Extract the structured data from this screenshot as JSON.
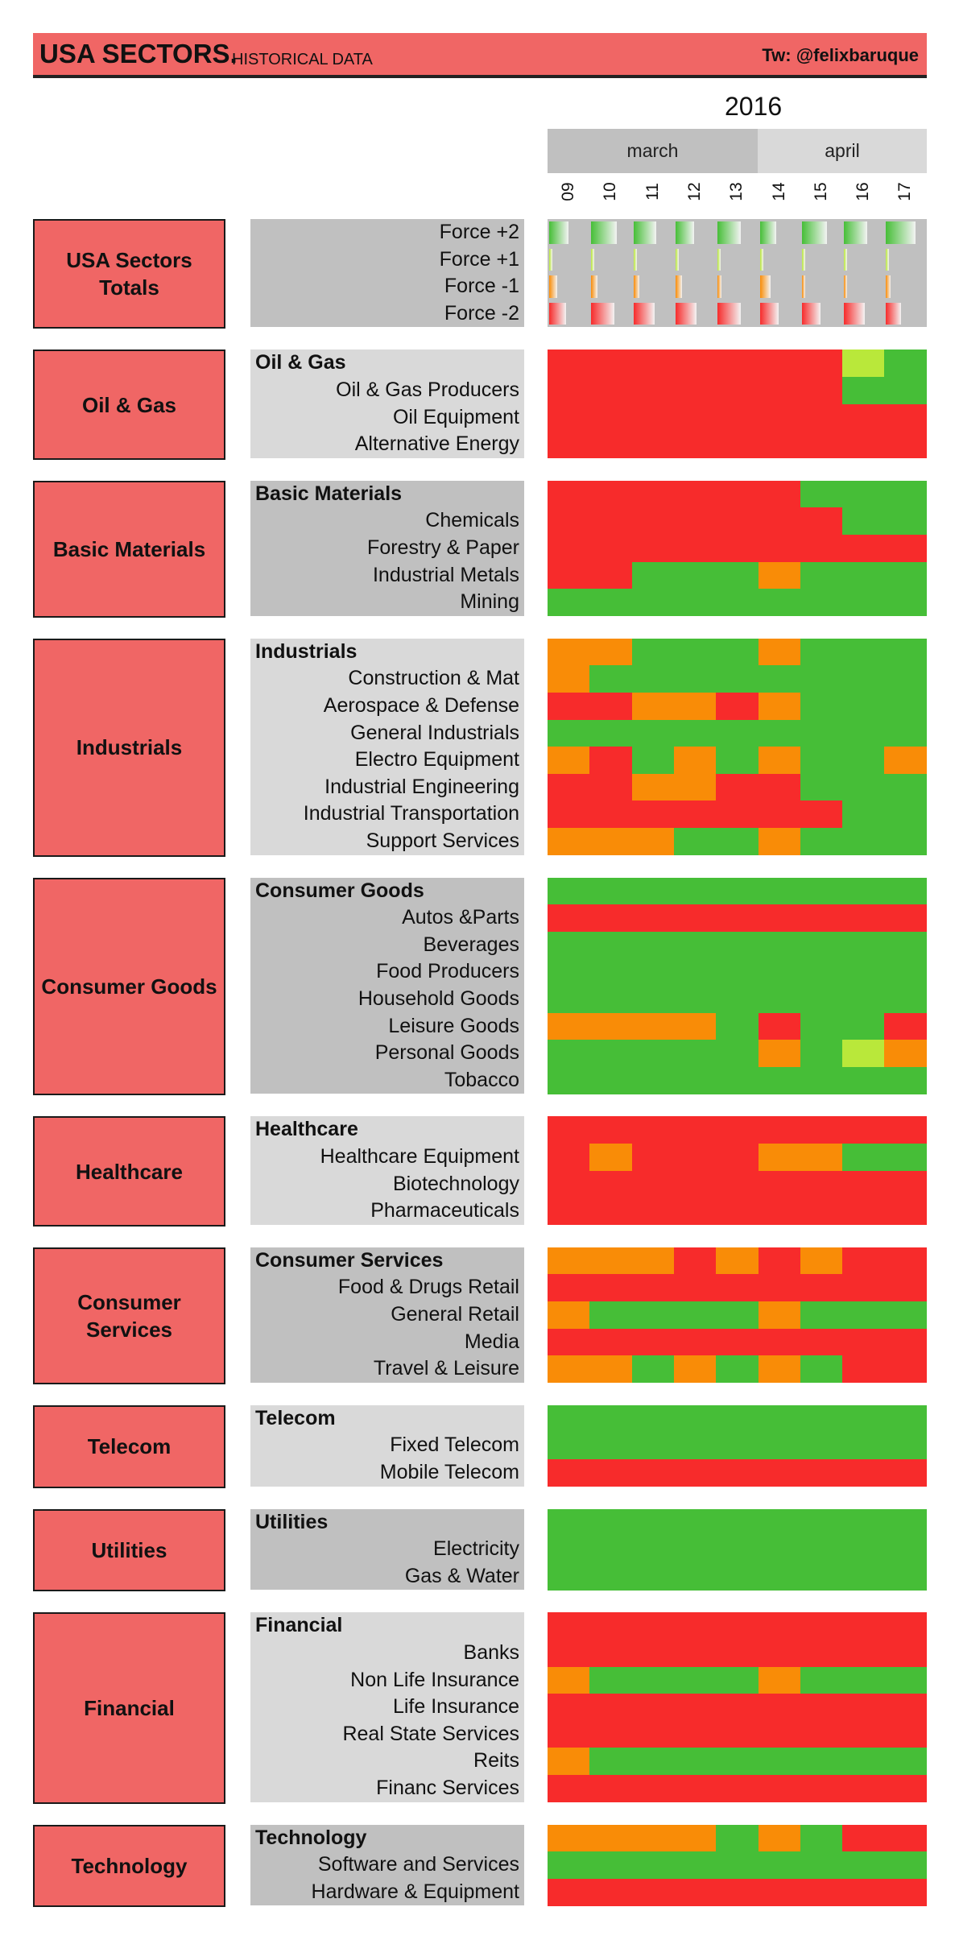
{
  "header": {
    "title": "USA SECTORS.",
    "subtitle": "HISTORICAL DATA",
    "twitter": "Tw: @felixbaruque"
  },
  "colors": {
    "header_bg": "#f06665",
    "force_plus2": "#46be37",
    "force_plus1": "#b9e83a",
    "force_minus1": "#f98c07",
    "force_minus2": "#f72b2b",
    "panel_dark": "#c0c0c0",
    "panel_light": "#d9d9d9"
  },
  "chart_data": {
    "type": "heatmap",
    "year": "2016",
    "months": [
      {
        "name": "march",
        "days": 5
      },
      {
        "name": "april",
        "days": 4
      }
    ],
    "days": [
      "09",
      "10",
      "11",
      "12",
      "13",
      "14",
      "15",
      "16",
      "17"
    ],
    "legend": {
      "group": "USA Sectors Totals",
      "rows": [
        "Force +2",
        "Force +1",
        "Force -1",
        "Force -2"
      ],
      "values": {
        "Force +2": [
          0.45,
          0.6,
          0.55,
          0.45,
          0.55,
          0.4,
          0.6,
          0.55,
          0.7
        ],
        "Force +1": [
          0.05,
          0.05,
          0.05,
          0.05,
          0.05,
          0.05,
          0.05,
          0.05,
          0.05
        ],
        "Force -1": [
          0.2,
          0.15,
          0.15,
          0.15,
          0.1,
          0.25,
          0.05,
          0.05,
          0.1
        ],
        "Force -2": [
          0.4,
          0.55,
          0.5,
          0.5,
          0.55,
          0.45,
          0.45,
          0.5,
          0.35
        ]
      }
    },
    "value_key": {
      "2": "Force +2",
      "1": "Force +1",
      "-1": "Force -1",
      "-2": "Force -2"
    },
    "groups": [
      {
        "name": "Oil & Gas",
        "rows": [
          {
            "label": "Oil & Gas",
            "values": [
              -2,
              -2,
              -2,
              -2,
              -2,
              -2,
              -2,
              1,
              2
            ]
          },
          {
            "label": "Oil & Gas Producers",
            "values": [
              -2,
              -2,
              -2,
              -2,
              -2,
              -2,
              -2,
              2,
              2
            ]
          },
          {
            "label": "Oil Equipment",
            "values": [
              -2,
              -2,
              -2,
              -2,
              -2,
              -2,
              -2,
              -2,
              -2
            ]
          },
          {
            "label": "Alternative Energy",
            "values": [
              -2,
              -2,
              -2,
              -2,
              -2,
              -2,
              -2,
              -2,
              -2
            ]
          }
        ]
      },
      {
        "name": "Basic Materials",
        "rows": [
          {
            "label": "Basic Materials",
            "values": [
              -2,
              -2,
              -2,
              -2,
              -2,
              -2,
              2,
              2,
              2
            ]
          },
          {
            "label": "Chemicals",
            "values": [
              -2,
              -2,
              -2,
              -2,
              -2,
              -2,
              -2,
              2,
              2
            ]
          },
          {
            "label": "Forestry & Paper",
            "values": [
              -2,
              -2,
              -2,
              -2,
              -2,
              -2,
              -2,
              -2,
              -2
            ]
          },
          {
            "label": "Industrial Metals",
            "values": [
              -2,
              -2,
              2,
              2,
              2,
              -1,
              2,
              2,
              2
            ]
          },
          {
            "label": "Mining",
            "values": [
              2,
              2,
              2,
              2,
              2,
              2,
              2,
              2,
              2
            ]
          }
        ]
      },
      {
        "name": "Industrials",
        "rows": [
          {
            "label": "Industrials",
            "values": [
              -1,
              -1,
              2,
              2,
              2,
              -1,
              2,
              2,
              2
            ]
          },
          {
            "label": "Construction & Mat",
            "values": [
              -1,
              2,
              2,
              2,
              2,
              2,
              2,
              2,
              2
            ]
          },
          {
            "label": "Aerospace & Defense",
            "values": [
              -2,
              -2,
              -1,
              -1,
              -2,
              -1,
              2,
              2,
              2
            ]
          },
          {
            "label": "General Industrials",
            "values": [
              2,
              2,
              2,
              2,
              2,
              2,
              2,
              2,
              2
            ]
          },
          {
            "label": "Electro Equipment",
            "values": [
              -1,
              -2,
              2,
              -1,
              2,
              -1,
              2,
              2,
              -1
            ]
          },
          {
            "label": "Industrial Engineering",
            "values": [
              -2,
              -2,
              -1,
              -1,
              -2,
              -2,
              2,
              2,
              2
            ]
          },
          {
            "label": "Industrial Transportation",
            "values": [
              -2,
              -2,
              -2,
              -2,
              -2,
              -2,
              -2,
              2,
              2
            ]
          },
          {
            "label": "Support Services",
            "values": [
              -1,
              -1,
              -1,
              2,
              2,
              -1,
              2,
              2,
              2
            ]
          }
        ]
      },
      {
        "name": "Consumer Goods",
        "rows": [
          {
            "label": "Consumer Goods",
            "values": [
              2,
              2,
              2,
              2,
              2,
              2,
              2,
              2,
              2
            ]
          },
          {
            "label": "Autos &Parts",
            "values": [
              -2,
              -2,
              -2,
              -2,
              -2,
              -2,
              -2,
              -2,
              -2
            ]
          },
          {
            "label": "Beverages",
            "values": [
              2,
              2,
              2,
              2,
              2,
              2,
              2,
              2,
              2
            ]
          },
          {
            "label": "Food Producers",
            "values": [
              2,
              2,
              2,
              2,
              2,
              2,
              2,
              2,
              2
            ]
          },
          {
            "label": "Household Goods",
            "values": [
              2,
              2,
              2,
              2,
              2,
              2,
              2,
              2,
              2
            ]
          },
          {
            "label": "Leisure Goods",
            "values": [
              -1,
              -1,
              -1,
              -1,
              2,
              -2,
              2,
              2,
              -2
            ]
          },
          {
            "label": "Personal Goods",
            "values": [
              2,
              2,
              2,
              2,
              2,
              -1,
              2,
              1,
              -1
            ]
          },
          {
            "label": "Tobacco",
            "values": [
              2,
              2,
              2,
              2,
              2,
              2,
              2,
              2,
              2
            ]
          }
        ]
      },
      {
        "name": "Healthcare",
        "rows": [
          {
            "label": "Healthcare",
            "values": [
              -2,
              -2,
              -2,
              -2,
              -2,
              -2,
              -2,
              -2,
              -2
            ]
          },
          {
            "label": "Healthcare Equipment",
            "values": [
              -2,
              -1,
              -2,
              -2,
              -2,
              -1,
              -1,
              2,
              2
            ]
          },
          {
            "label": "Biotechnology",
            "values": [
              -2,
              -2,
              -2,
              -2,
              -2,
              -2,
              -2,
              -2,
              -2
            ]
          },
          {
            "label": "Pharmaceuticals",
            "values": [
              -2,
              -2,
              -2,
              -2,
              -2,
              -2,
              -2,
              -2,
              -2
            ]
          }
        ]
      },
      {
        "name": "Consumer Services",
        "rows": [
          {
            "label": "Consumer Services",
            "values": [
              -1,
              -1,
              -1,
              -2,
              -1,
              -2,
              -1,
              -2,
              -2
            ]
          },
          {
            "label": "Food & Drugs Retail",
            "values": [
              -2,
              -2,
              -2,
              -2,
              -2,
              -2,
              -2,
              -2,
              -2
            ]
          },
          {
            "label": "General Retail",
            "values": [
              -1,
              2,
              2,
              2,
              2,
              -1,
              2,
              2,
              2
            ]
          },
          {
            "label": "Media",
            "values": [
              -2,
              -2,
              -2,
              -2,
              -2,
              -2,
              -2,
              -2,
              -2
            ]
          },
          {
            "label": "Travel & Leisure",
            "values": [
              -1,
              -1,
              2,
              -1,
              2,
              -1,
              2,
              -2,
              -2
            ]
          }
        ]
      },
      {
        "name": "Telecom",
        "rows": [
          {
            "label": "Telecom",
            "values": [
              2,
              2,
              2,
              2,
              2,
              2,
              2,
              2,
              2
            ]
          },
          {
            "label": "Fixed Telecom",
            "values": [
              2,
              2,
              2,
              2,
              2,
              2,
              2,
              2,
              2
            ]
          },
          {
            "label": "Mobile Telecom",
            "values": [
              -2,
              -2,
              -2,
              -2,
              -2,
              -2,
              -2,
              -2,
              -2
            ]
          }
        ]
      },
      {
        "name": "Utilities",
        "rows": [
          {
            "label": "Utilities",
            "values": [
              2,
              2,
              2,
              2,
              2,
              2,
              2,
              2,
              2
            ]
          },
          {
            "label": "Electricity",
            "values": [
              2,
              2,
              2,
              2,
              2,
              2,
              2,
              2,
              2
            ]
          },
          {
            "label": "Gas & Water",
            "values": [
              2,
              2,
              2,
              2,
              2,
              2,
              2,
              2,
              2
            ]
          }
        ]
      },
      {
        "name": "Financial",
        "rows": [
          {
            "label": "Financial",
            "values": [
              -2,
              -2,
              -2,
              -2,
              -2,
              -2,
              -2,
              -2,
              -2
            ]
          },
          {
            "label": "Banks",
            "values": [
              -2,
              -2,
              -2,
              -2,
              -2,
              -2,
              -2,
              -2,
              -2
            ]
          },
          {
            "label": "Non Life Insurance",
            "values": [
              -1,
              2,
              2,
              2,
              2,
              -1,
              2,
              2,
              2
            ]
          },
          {
            "label": "Life Insurance",
            "values": [
              -2,
              -2,
              -2,
              -2,
              -2,
              -2,
              -2,
              -2,
              -2
            ]
          },
          {
            "label": "Real State Services",
            "values": [
              -2,
              -2,
              -2,
              -2,
              -2,
              -2,
              -2,
              -2,
              -2
            ]
          },
          {
            "label": "Reits",
            "values": [
              -1,
              2,
              2,
              2,
              2,
              2,
              2,
              2,
              2
            ]
          },
          {
            "label": "Financ Services",
            "values": [
              -2,
              -2,
              -2,
              -2,
              -2,
              -2,
              -2,
              -2,
              -2
            ]
          }
        ]
      },
      {
        "name": "Technology",
        "rows": [
          {
            "label": "Technology",
            "values": [
              -1,
              -1,
              -1,
              -1,
              2,
              -1,
              2,
              -2,
              -2
            ]
          },
          {
            "label": "Software and Services",
            "values": [
              2,
              2,
              2,
              2,
              2,
              2,
              2,
              2,
              2
            ]
          },
          {
            "label": "Hardware & Equipment",
            "values": [
              -2,
              -2,
              -2,
              -2,
              -2,
              -2,
              -2,
              -2,
              -2
            ]
          }
        ]
      }
    ]
  }
}
